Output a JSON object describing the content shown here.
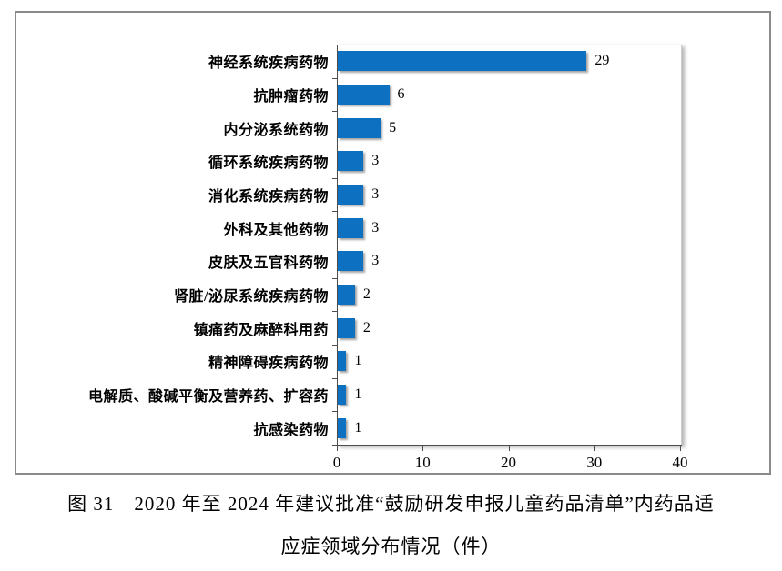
{
  "chart_data": {
    "type": "bar",
    "orientation": "horizontal",
    "categories": [
      "神经系统疾病药物",
      "抗肿瘤药物",
      "内分泌系统药物",
      "循环系统疾病药物",
      "消化系统疾病药物",
      "外科及其他药物",
      "皮肤及五官科药物",
      "肾脏/泌尿系统疾病药物",
      "镇痛药及麻醉科用药",
      "精神障碍疾病药物",
      "电解质、酸碱平衡及营养药、扩容药",
      "抗感染药物"
    ],
    "values": [
      29,
      6,
      5,
      3,
      3,
      3,
      3,
      2,
      2,
      1,
      1,
      1
    ],
    "xlim": [
      0,
      40
    ],
    "xticks": [
      0,
      10,
      20,
      30,
      40
    ],
    "bar_color": "#0E70C1",
    "axis_color": "#4d4d4d",
    "grid": false,
    "legend": "none",
    "data_labels": true
  },
  "caption": {
    "line1": "图 31　2020 年至 2024 年建议批准“鼓励研发申报儿童药品清单”内药品适",
    "line2": "应症领域分布情况（件）"
  }
}
